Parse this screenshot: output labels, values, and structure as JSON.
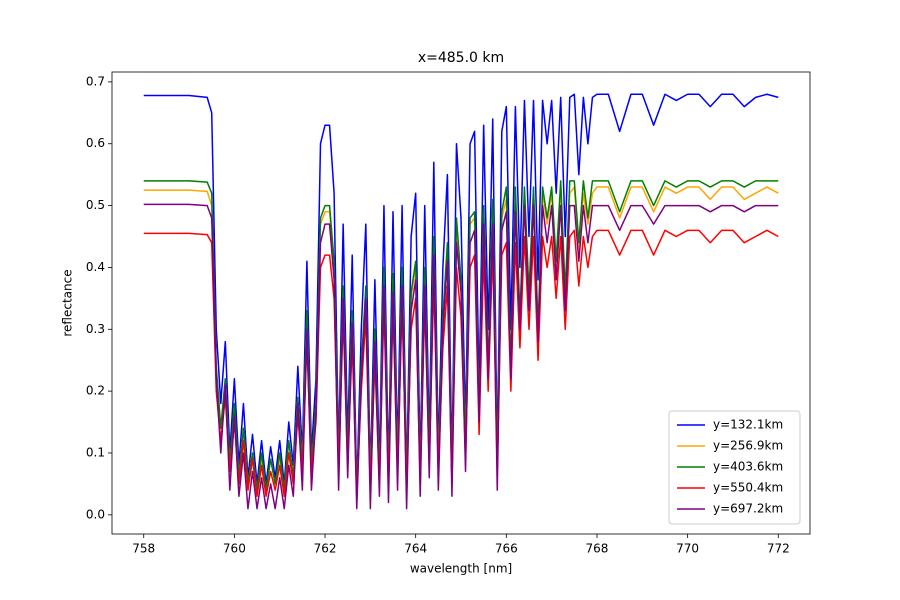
{
  "chart_data": {
    "type": "line",
    "title": "x=485.0 km",
    "xlabel": "wavelength [nm]",
    "ylabel": "reflectance",
    "xlim": [
      757.3,
      772.7
    ],
    "ylim": [
      -0.031,
      0.716
    ],
    "xticks": [
      758,
      760,
      762,
      764,
      766,
      768,
      770,
      772
    ],
    "yticks": [
      {
        "value": 0,
        "label": "0.0"
      },
      0.1,
      0.2,
      0.3,
      0.4,
      0.5,
      0.6,
      0.7
    ],
    "legend": "lower right",
    "x": [
      758,
      759,
      759.4,
      759.5,
      759.6,
      759.7,
      759.8,
      759.9,
      760.0,
      760.1,
      760.2,
      760.3,
      760.4,
      760.5,
      760.6,
      760.7,
      760.8,
      760.9,
      761.0,
      761.1,
      761.2,
      761.3,
      761.4,
      761.5,
      761.6,
      761.7,
      761.8,
      761.9,
      762.0,
      762.1,
      762.2,
      762.3,
      762.4,
      762.5,
      762.6,
      762.7,
      762.8,
      762.9,
      763.0,
      763.1,
      763.2,
      763.3,
      763.4,
      763.5,
      763.6,
      763.7,
      763.8,
      763.9,
      764.0,
      764.1,
      764.2,
      764.3,
      764.4,
      764.5,
      764.6,
      764.7,
      764.8,
      764.9,
      765.0,
      765.1,
      765.2,
      765.3,
      765.4,
      765.5,
      765.6,
      765.7,
      765.8,
      765.9,
      766.0,
      766.1,
      766.2,
      766.3,
      766.4,
      766.5,
      766.6,
      766.7,
      766.8,
      766.9,
      767.0,
      767.1,
      767.2,
      767.3,
      767.4,
      767.5,
      767.6,
      767.7,
      767.8,
      767.9,
      768.0,
      768.25,
      768.5,
      768.75,
      769.0,
      769.25,
      769.5,
      769.75,
      770.0,
      770.25,
      770.5,
      770.75,
      771.0,
      771.25,
      771.5,
      771.75,
      772.0
    ],
    "series": [
      {
        "name": "y=132.1km",
        "color": "#0000ff",
        "values": [
          0.678,
          0.678,
          0.675,
          0.65,
          0.3,
          0.18,
          0.28,
          0.1,
          0.22,
          0.08,
          0.18,
          0.06,
          0.13,
          0.05,
          0.12,
          0.05,
          0.11,
          0.06,
          0.12,
          0.05,
          0.15,
          0.08,
          0.24,
          0.1,
          0.41,
          0.1,
          0.22,
          0.6,
          0.63,
          0.63,
          0.52,
          0.1,
          0.47,
          0.12,
          0.42,
          0.04,
          0.3,
          0.47,
          0.06,
          0.38,
          0.08,
          0.5,
          0.07,
          0.49,
          0.1,
          0.5,
          0.06,
          0.45,
          0.52,
          0.08,
          0.5,
          0.12,
          0.57,
          0.1,
          0.4,
          0.55,
          0.08,
          0.6,
          0.48,
          0.14,
          0.6,
          0.62,
          0.2,
          0.63,
          0.3,
          0.64,
          0.1,
          0.62,
          0.66,
          0.3,
          0.66,
          0.4,
          0.67,
          0.45,
          0.67,
          0.38,
          0.67,
          0.6,
          0.67,
          0.52,
          0.675,
          0.45,
          0.675,
          0.68,
          0.55,
          0.675,
          0.6,
          0.675,
          0.68,
          0.68,
          0.62,
          0.68,
          0.68,
          0.63,
          0.68,
          0.67,
          0.68,
          0.68,
          0.66,
          0.68,
          0.68,
          0.66,
          0.675,
          0.68,
          0.675
        ]
      },
      {
        "name": "y=256.9km",
        "color": "#ffa500",
        "values": [
          0.525,
          0.525,
          0.523,
          0.5,
          0.23,
          0.14,
          0.22,
          0.08,
          0.17,
          0.06,
          0.14,
          0.05,
          0.1,
          0.04,
          0.09,
          0.04,
          0.09,
          0.05,
          0.09,
          0.04,
          0.12,
          0.06,
          0.19,
          0.08,
          0.32,
          0.08,
          0.17,
          0.47,
          0.49,
          0.49,
          0.4,
          0.08,
          0.36,
          0.09,
          0.33,
          0.03,
          0.23,
          0.36,
          0.05,
          0.29,
          0.06,
          0.39,
          0.05,
          0.38,
          0.08,
          0.39,
          0.05,
          0.35,
          0.4,
          0.06,
          0.39,
          0.09,
          0.44,
          0.08,
          0.31,
          0.43,
          0.06,
          0.47,
          0.37,
          0.11,
          0.47,
          0.48,
          0.16,
          0.49,
          0.23,
          0.5,
          0.08,
          0.48,
          0.51,
          0.23,
          0.51,
          0.31,
          0.52,
          0.35,
          0.52,
          0.29,
          0.52,
          0.47,
          0.52,
          0.4,
          0.52,
          0.35,
          0.52,
          0.53,
          0.43,
          0.52,
          0.47,
          0.52,
          0.53,
          0.53,
          0.48,
          0.53,
          0.53,
          0.49,
          0.53,
          0.52,
          0.53,
          0.53,
          0.51,
          0.53,
          0.53,
          0.51,
          0.52,
          0.53,
          0.52
        ]
      },
      {
        "name": "y=403.6km",
        "color": "#008000",
        "values": [
          0.54,
          0.54,
          0.538,
          0.52,
          0.24,
          0.14,
          0.22,
          0.08,
          0.18,
          0.06,
          0.14,
          0.05,
          0.1,
          0.04,
          0.1,
          0.04,
          0.09,
          0.05,
          0.1,
          0.04,
          0.12,
          0.06,
          0.19,
          0.08,
          0.33,
          0.08,
          0.18,
          0.48,
          0.5,
          0.5,
          0.41,
          0.08,
          0.37,
          0.1,
          0.33,
          0.03,
          0.24,
          0.37,
          0.05,
          0.3,
          0.06,
          0.4,
          0.06,
          0.39,
          0.08,
          0.4,
          0.05,
          0.36,
          0.41,
          0.06,
          0.4,
          0.1,
          0.45,
          0.08,
          0.32,
          0.44,
          0.06,
          0.48,
          0.38,
          0.11,
          0.48,
          0.49,
          0.16,
          0.5,
          0.24,
          0.51,
          0.08,
          0.49,
          0.53,
          0.24,
          0.53,
          0.32,
          0.53,
          0.36,
          0.53,
          0.3,
          0.53,
          0.48,
          0.53,
          0.41,
          0.54,
          0.36,
          0.54,
          0.54,
          0.44,
          0.54,
          0.48,
          0.54,
          0.54,
          0.54,
          0.49,
          0.54,
          0.54,
          0.5,
          0.54,
          0.53,
          0.54,
          0.54,
          0.53,
          0.54,
          0.54,
          0.53,
          0.54,
          0.54,
          0.54
        ]
      },
      {
        "name": "y=550.4km",
        "color": "#ff0000",
        "values": [
          0.455,
          0.455,
          0.453,
          0.44,
          0.2,
          0.12,
          0.19,
          0.07,
          0.15,
          0.05,
          0.12,
          0.04,
          0.09,
          0.03,
          0.08,
          0.03,
          0.07,
          0.04,
          0.08,
          0.03,
          0.1,
          0.05,
          0.16,
          0.07,
          0.28,
          0.07,
          0.15,
          0.4,
          0.42,
          0.42,
          0.35,
          0.07,
          0.32,
          0.08,
          0.28,
          0.03,
          0.2,
          0.32,
          0.04,
          0.25,
          0.05,
          0.34,
          0.05,
          0.33,
          0.07,
          0.34,
          0.04,
          0.3,
          0.35,
          0.05,
          0.34,
          0.08,
          0.38,
          0.07,
          0.27,
          0.37,
          0.05,
          0.4,
          0.32,
          0.09,
          0.4,
          0.42,
          0.13,
          0.42,
          0.2,
          0.43,
          0.07,
          0.42,
          0.44,
          0.2,
          0.44,
          0.27,
          0.45,
          0.3,
          0.45,
          0.25,
          0.45,
          0.4,
          0.45,
          0.35,
          0.45,
          0.3,
          0.45,
          0.46,
          0.37,
          0.45,
          0.4,
          0.45,
          0.46,
          0.46,
          0.42,
          0.46,
          0.46,
          0.42,
          0.46,
          0.45,
          0.46,
          0.46,
          0.44,
          0.46,
          0.46,
          0.44,
          0.45,
          0.46,
          0.45
        ]
      },
      {
        "name": "y=697.2km",
        "color": "#800080",
        "values": [
          0.502,
          0.502,
          0.5,
          0.48,
          0.22,
          0.1,
          0.21,
          0.04,
          0.16,
          0.03,
          0.1,
          0.01,
          0.07,
          0.01,
          0.06,
          0.01,
          0.05,
          0.01,
          0.06,
          0.01,
          0.08,
          0.03,
          0.18,
          0.04,
          0.3,
          0.04,
          0.16,
          0.44,
          0.47,
          0.47,
          0.38,
          0.04,
          0.35,
          0.06,
          0.31,
          0.01,
          0.22,
          0.35,
          0.01,
          0.28,
          0.03,
          0.37,
          0.02,
          0.36,
          0.04,
          0.37,
          0.01,
          0.33,
          0.38,
          0.03,
          0.37,
          0.06,
          0.42,
          0.04,
          0.3,
          0.41,
          0.03,
          0.44,
          0.36,
          0.07,
          0.44,
          0.46,
          0.15,
          0.47,
          0.22,
          0.47,
          0.04,
          0.46,
          0.49,
          0.22,
          0.49,
          0.3,
          0.5,
          0.33,
          0.5,
          0.28,
          0.5,
          0.44,
          0.5,
          0.38,
          0.5,
          0.33,
          0.5,
          0.5,
          0.41,
          0.5,
          0.44,
          0.5,
          0.5,
          0.5,
          0.46,
          0.5,
          0.5,
          0.47,
          0.5,
          0.5,
          0.5,
          0.5,
          0.49,
          0.5,
          0.5,
          0.49,
          0.5,
          0.5,
          0.5
        ]
      }
    ]
  }
}
